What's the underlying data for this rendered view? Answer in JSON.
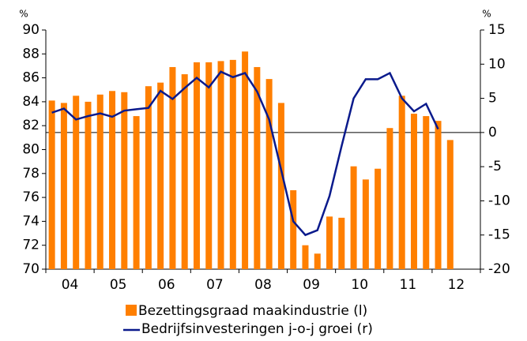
{
  "chart_data": {
    "type": "bar-line",
    "ylabel": "%",
    "y2label": "%",
    "categories": [
      "04",
      null,
      null,
      null,
      "05",
      null,
      null,
      null,
      "06",
      null,
      null,
      null,
      "07",
      null,
      null,
      null,
      "08",
      null,
      null,
      null,
      "09",
      null,
      null,
      null,
      "10",
      null,
      null,
      null,
      "11",
      null,
      null,
      null,
      "12",
      null
    ],
    "series": [
      {
        "name": "Bezettingsgraad maakindustrie (l)",
        "color": "#ff7f00",
        "kind": "bar",
        "values": [
          84.1,
          83.9,
          84.5,
          84.0,
          84.6,
          84.9,
          84.8,
          82.8,
          85.3,
          85.6,
          86.9,
          86.3,
          87.3,
          87.3,
          87.4,
          87.5,
          88.2,
          86.9,
          85.9,
          83.9,
          76.6,
          72.0,
          71.3,
          74.4,
          74.3,
          78.6,
          77.5,
          78.4,
          81.8,
          84.5,
          83.0,
          82.8,
          82.4,
          80.8
        ]
      },
      {
        "name": "Bedrijfsinvesteringen j-o-j groei (r)",
        "color": "#0a1a8c",
        "kind": "line",
        "axis": "y2",
        "values": [
          2.9,
          3.5,
          1.9,
          2.4,
          2.8,
          2.3,
          3.2,
          3.4,
          3.6,
          6.1,
          4.9,
          6.5,
          8.0,
          6.6,
          8.9,
          8.1,
          8.7,
          6.0,
          1.9,
          -5.5,
          -13.0,
          -15.0,
          -14.3,
          -9.3,
          -2.0,
          5.0,
          7.8,
          7.8,
          8.7,
          5.0,
          3.1,
          4.2,
          0.5,
          null
        ]
      }
    ],
    "ylim": [
      70,
      90
    ],
    "yticks": [
      70,
      72,
      74,
      76,
      78,
      80,
      82,
      84,
      86,
      88,
      90
    ],
    "y2lim": [
      -20,
      15
    ],
    "y2ticks": [
      -20,
      -15,
      -10,
      -5,
      0,
      5,
      10,
      15
    ]
  }
}
